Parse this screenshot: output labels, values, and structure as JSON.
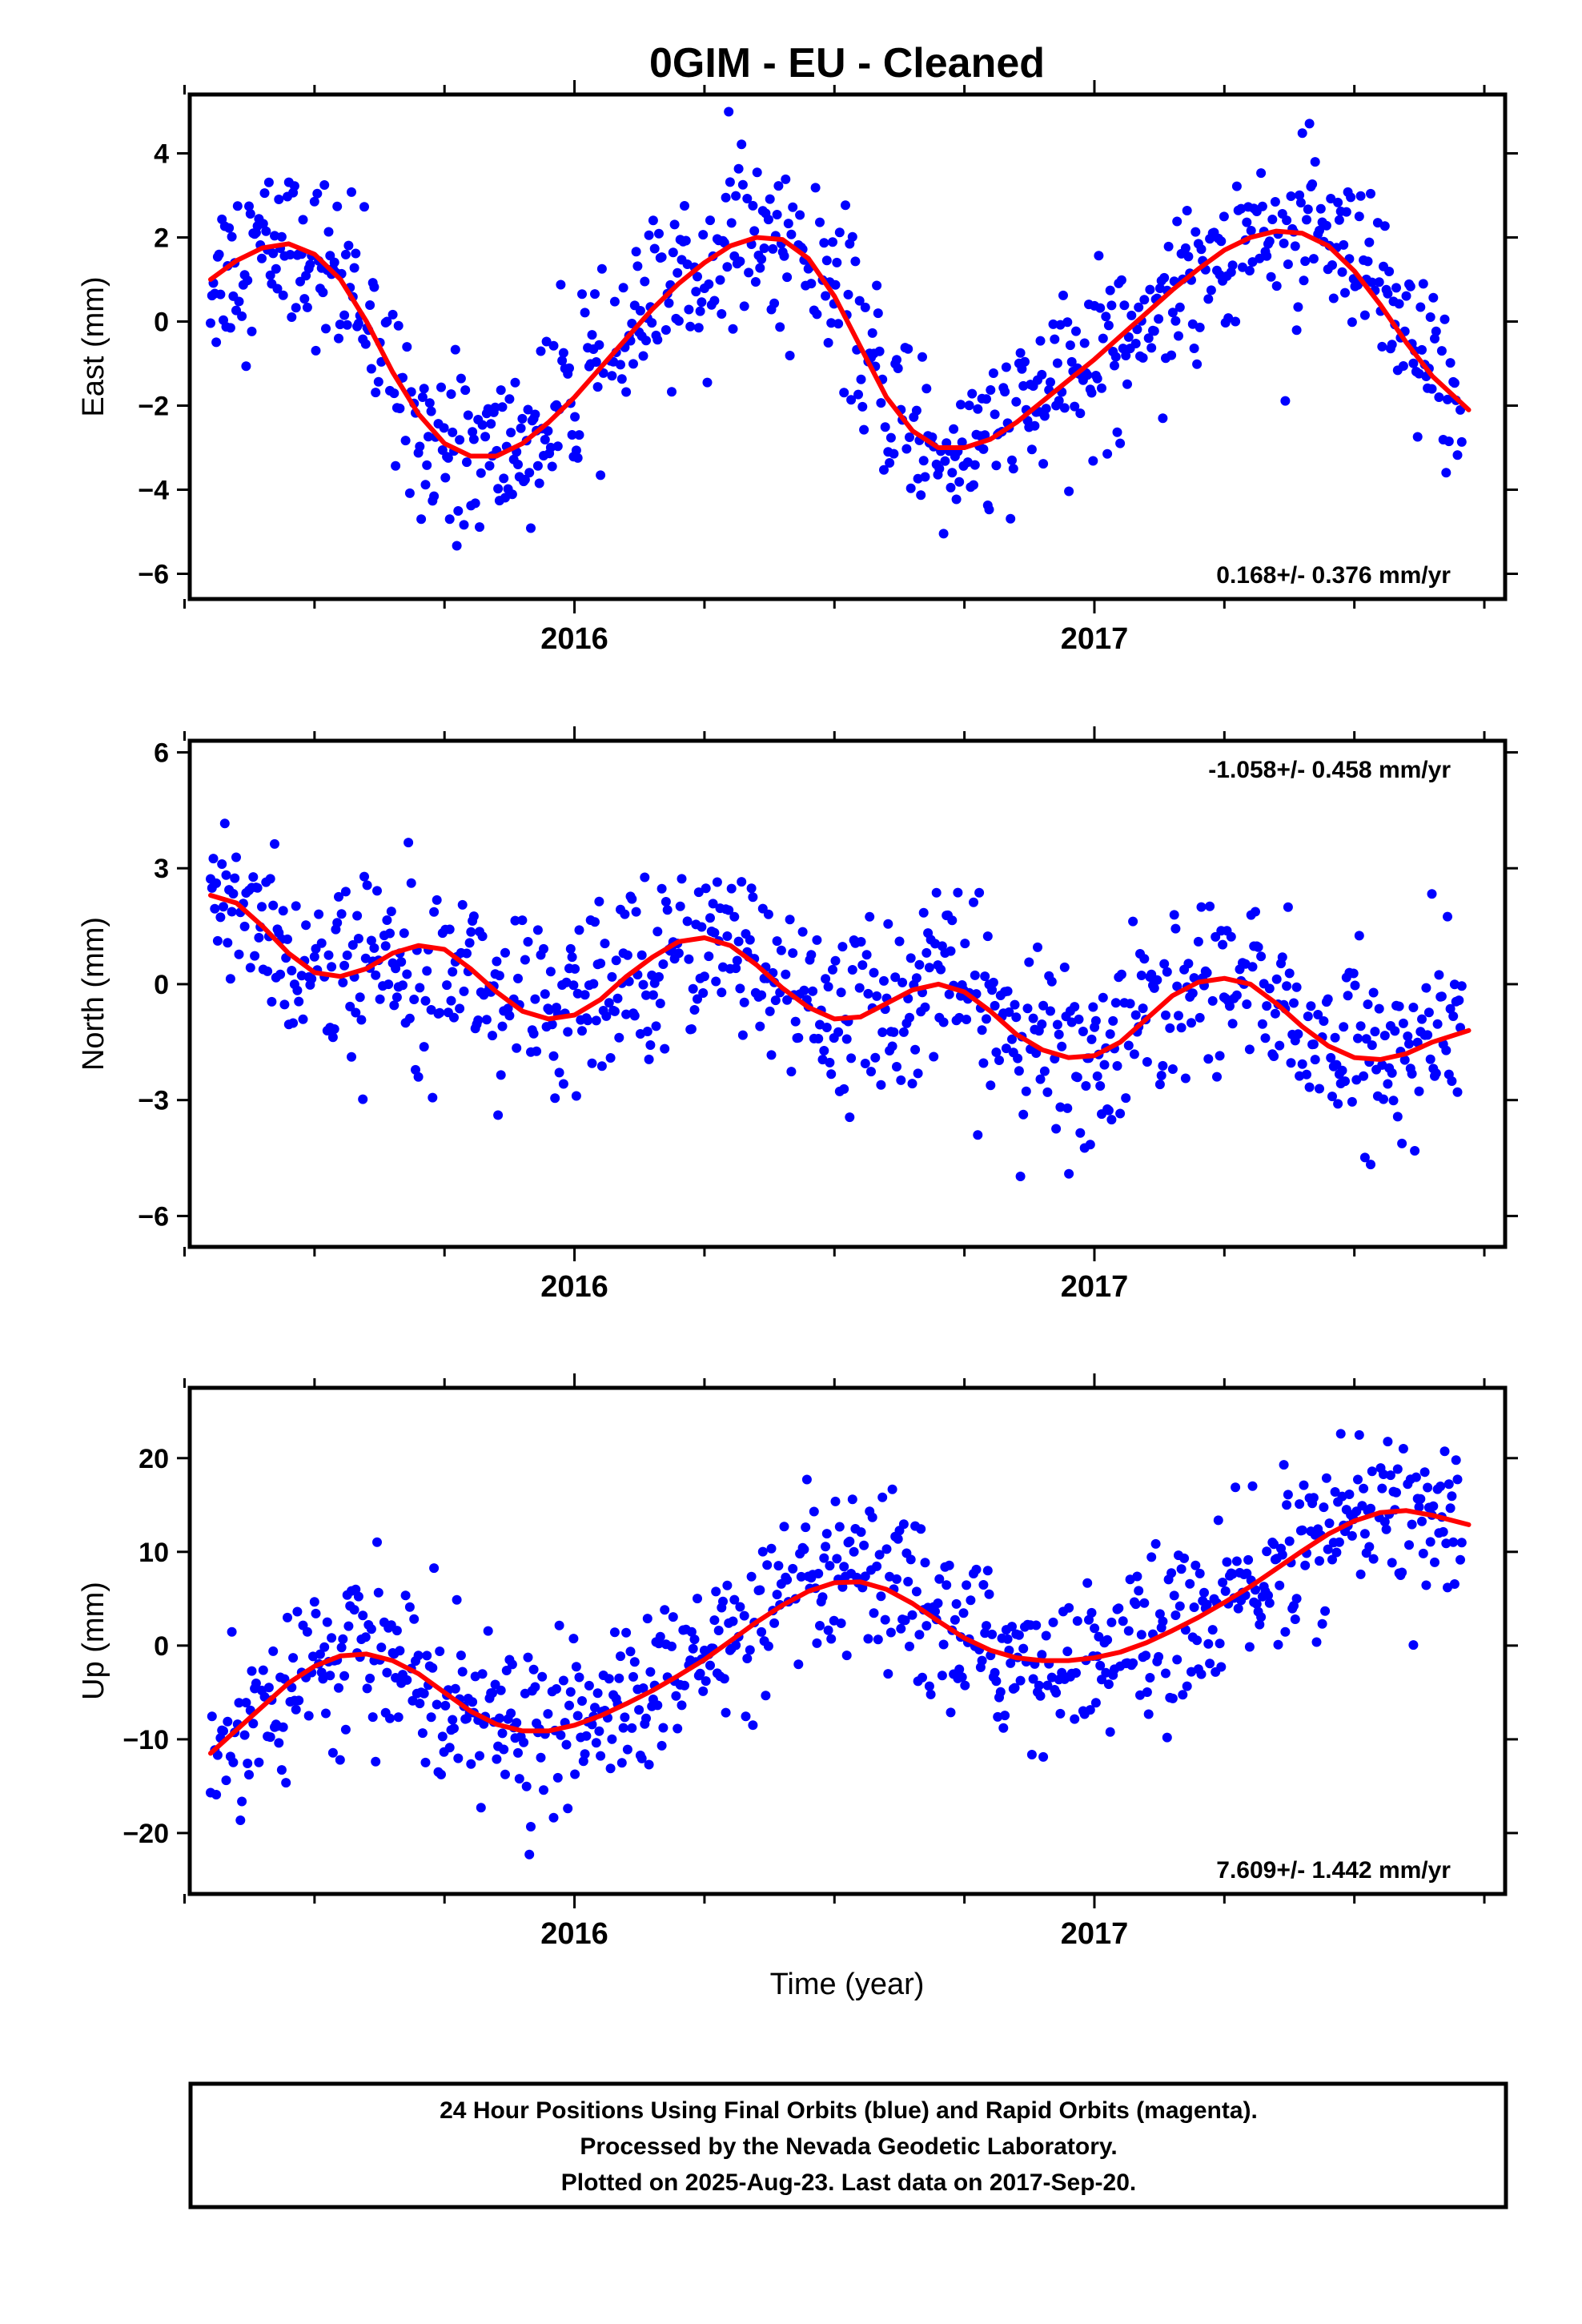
{
  "title": "0GIM  - EU - Cleaned",
  "xlabel": "Time (year)",
  "caption": {
    "line1": "24 Hour Positions Using Final Orbits (blue) and Rapid Orbits (magenta).",
    "line2": "Processed by the Nevada Geodetic Laboratory.",
    "line3": "Plotted on 2025-Aug-23. Last data on 2017-Sep-20."
  },
  "colors": {
    "points": "#0000ff",
    "fit": "#ff0000",
    "frame": "#000000"
  },
  "chart_data": [
    {
      "type": "scatter",
      "ylabel": "East (mm)",
      "rate": "0.168+/- 0.376 mm/yr",
      "rate_position": "bottom-right",
      "xlim": [
        2015.26,
        2017.79
      ],
      "ylim": [
        -6.6,
        5.4
      ],
      "yticks": [
        4,
        2,
        0,
        -2,
        -4,
        -6
      ],
      "ytick_labels": [
        "4",
        "2",
        "0",
        "−2",
        "−4",
        "−6"
      ],
      "xtick_labels": [
        "2016",
        "2017"
      ],
      "xtick_values": [
        2016,
        2017
      ],
      "series": [
        {
          "role": "fit",
          "x": [
            2015.3,
            2015.35,
            2015.4,
            2015.45,
            2015.5,
            2015.55,
            2015.6,
            2015.65,
            2015.7,
            2015.75,
            2015.8,
            2015.85,
            2015.9,
            2015.95,
            2016.0,
            2016.05,
            2016.1,
            2016.15,
            2016.2,
            2016.25,
            2016.3,
            2016.35,
            2016.4,
            2016.45,
            2016.5,
            2016.55,
            2016.6,
            2016.65,
            2016.7,
            2016.75,
            2016.8,
            2016.85,
            2016.9,
            2016.95,
            2017.0,
            2017.05,
            2017.1,
            2017.15,
            2017.2,
            2017.25,
            2017.3,
            2017.35,
            2017.4,
            2017.45,
            2017.5,
            2017.55,
            2017.6,
            2017.65,
            2017.72
          ],
          "y": [
            1.0,
            1.45,
            1.75,
            1.85,
            1.6,
            1.0,
            0.0,
            -1.2,
            -2.2,
            -2.9,
            -3.2,
            -3.2,
            -2.9,
            -2.4,
            -1.8,
            -1.1,
            -0.4,
            0.3,
            0.9,
            1.4,
            1.8,
            2.0,
            1.95,
            1.5,
            0.6,
            -0.6,
            -1.8,
            -2.6,
            -3.0,
            -3.0,
            -2.8,
            -2.4,
            -1.9,
            -1.4,
            -0.9,
            -0.35,
            0.2,
            0.75,
            1.25,
            1.7,
            2.0,
            2.15,
            2.1,
            1.8,
            1.2,
            0.4,
            -0.5,
            -1.3,
            -2.1
          ]
        }
      ]
    },
    {
      "type": "scatter",
      "ylabel": "North (mm)",
      "rate": "-1.058+/- 0.458 mm/yr",
      "rate_position": "top-right",
      "xlim": [
        2015.26,
        2017.79
      ],
      "ylim": [
        -6.8,
        6.3
      ],
      "yticks": [
        6,
        3,
        0,
        -3,
        -6
      ],
      "ytick_labels": [
        "6",
        "3",
        "0",
        "−3",
        "−6"
      ],
      "xtick_labels": [
        "2016",
        "2017"
      ],
      "xtick_values": [
        2016,
        2017
      ],
      "series": [
        {
          "role": "fit",
          "x": [
            2015.3,
            2015.35,
            2015.4,
            2015.45,
            2015.5,
            2015.55,
            2015.6,
            2015.65,
            2015.7,
            2015.75,
            2015.8,
            2015.85,
            2015.9,
            2015.95,
            2016.0,
            2016.05,
            2016.1,
            2016.15,
            2016.2,
            2016.25,
            2016.3,
            2016.35,
            2016.4,
            2016.45,
            2016.5,
            2016.55,
            2016.6,
            2016.65,
            2016.7,
            2016.75,
            2016.8,
            2016.85,
            2016.9,
            2016.95,
            2017.0,
            2017.05,
            2017.1,
            2017.15,
            2017.2,
            2017.25,
            2017.3,
            2017.35,
            2017.4,
            2017.45,
            2017.5,
            2017.55,
            2017.6,
            2017.65,
            2017.72
          ],
          "y": [
            2.3,
            2.1,
            1.5,
            0.8,
            0.3,
            0.2,
            0.4,
            0.8,
            1.0,
            0.9,
            0.4,
            -0.2,
            -0.7,
            -0.9,
            -0.8,
            -0.4,
            0.2,
            0.7,
            1.1,
            1.2,
            1.0,
            0.5,
            -0.1,
            -0.6,
            -0.9,
            -0.85,
            -0.5,
            -0.15,
            0.0,
            -0.2,
            -0.7,
            -1.3,
            -1.7,
            -1.9,
            -1.85,
            -1.5,
            -0.9,
            -0.3,
            0.05,
            0.15,
            0.0,
            -0.5,
            -1.1,
            -1.6,
            -1.9,
            -1.95,
            -1.8,
            -1.5,
            -1.2
          ]
        }
      ]
    },
    {
      "type": "scatter",
      "ylabel": "Up (mm)",
      "rate": "7.609+/- 1.442 mm/yr",
      "rate_position": "bottom-right",
      "xlim": [
        2015.26,
        2017.79
      ],
      "ylim": [
        -26.5,
        27.5
      ],
      "yticks": [
        20,
        10,
        0,
        -10,
        -20
      ],
      "ytick_labels": [
        "20",
        "10",
        "0",
        "−10",
        "−20"
      ],
      "xtick_labels": [
        "2016",
        "2017"
      ],
      "xtick_values": [
        2016,
        2017
      ],
      "series": [
        {
          "role": "fit",
          "x": [
            2015.3,
            2015.35,
            2015.4,
            2015.45,
            2015.5,
            2015.55,
            2015.6,
            2015.65,
            2015.7,
            2015.75,
            2015.8,
            2015.85,
            2015.9,
            2015.95,
            2016.0,
            2016.05,
            2016.1,
            2016.15,
            2016.2,
            2016.25,
            2016.3,
            2016.35,
            2016.4,
            2016.45,
            2016.5,
            2016.55,
            2016.6,
            2016.65,
            2016.7,
            2016.75,
            2016.8,
            2016.85,
            2016.9,
            2016.95,
            2017.0,
            2017.05,
            2017.1,
            2017.15,
            2017.2,
            2017.25,
            2017.3,
            2017.35,
            2017.4,
            2017.45,
            2017.5,
            2017.55,
            2017.6,
            2017.65,
            2017.72
          ],
          "y": [
            -11.5,
            -9.0,
            -6.5,
            -4.0,
            -2.2,
            -1.1,
            -0.9,
            -1.6,
            -3.0,
            -5.0,
            -7.0,
            -8.4,
            -9.1,
            -9.1,
            -8.5,
            -7.5,
            -6.2,
            -4.8,
            -3.2,
            -1.5,
            0.5,
            2.5,
            4.3,
            5.8,
            6.7,
            6.8,
            6.0,
            4.5,
            2.6,
            0.8,
            -0.5,
            -1.3,
            -1.6,
            -1.6,
            -1.3,
            -0.7,
            0.3,
            1.6,
            3.0,
            4.6,
            6.3,
            8.2,
            10.1,
            11.9,
            13.3,
            14.2,
            14.4,
            13.9,
            12.9
          ]
        }
      ]
    }
  ]
}
